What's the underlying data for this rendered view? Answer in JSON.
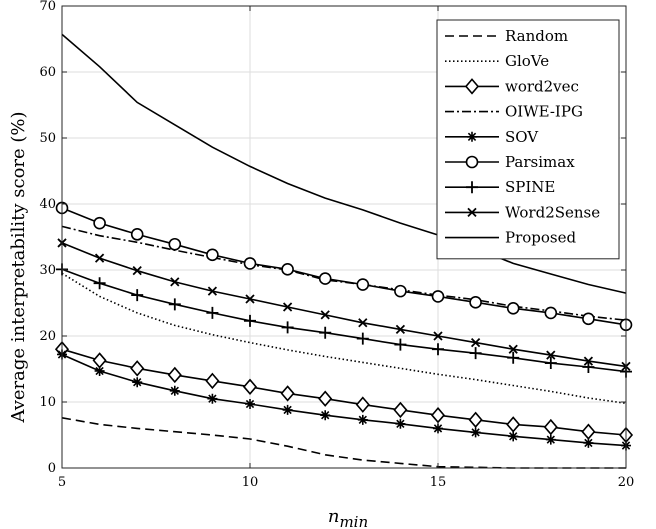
{
  "chart_data": {
    "type": "line",
    "title": "",
    "xlabel": "n",
    "xlabel_sub": "min",
    "ylabel": "Average interpretability score (%)",
    "xlim": [
      5,
      20
    ],
    "ylim": [
      0,
      70
    ],
    "xticks": [
      5,
      10,
      15,
      20
    ],
    "yticks": [
      0,
      10,
      20,
      30,
      40,
      50,
      60,
      70
    ],
    "grid": true,
    "legend": "top-right",
    "x": [
      5,
      6,
      7,
      8,
      9,
      10,
      11,
      12,
      13,
      14,
      15,
      16,
      17,
      18,
      19,
      20
    ],
    "series": [
      {
        "name": "Random",
        "style": "dashed",
        "marker": "none",
        "values": [
          7.6,
          6.6,
          6.0,
          5.5,
          5.0,
          4.4,
          3.3,
          2.0,
          1.2,
          0.7,
          0.2,
          0.1,
          0.0,
          0.0,
          0.0,
          0.0
        ]
      },
      {
        "name": "GloVe",
        "style": "dotted",
        "marker": "none",
        "values": [
          29.5,
          26.0,
          23.5,
          21.6,
          20.2,
          19.0,
          17.9,
          16.9,
          16.0,
          15.1,
          14.2,
          13.4,
          12.5,
          11.6,
          10.6,
          9.8
        ]
      },
      {
        "name": "word2vec",
        "style": "solid",
        "marker": "diamond",
        "values": [
          18.0,
          16.3,
          15.1,
          14.1,
          13.2,
          12.3,
          11.3,
          10.5,
          9.6,
          8.8,
          8.0,
          7.3,
          6.6,
          6.2,
          5.5,
          5.0
        ]
      },
      {
        "name": "OIWE-IPG",
        "style": "dashdot",
        "marker": "none",
        "values": [
          36.6,
          35.2,
          34.2,
          33.0,
          31.9,
          30.8,
          30.0,
          28.5,
          27.8,
          27.0,
          26.2,
          25.5,
          24.5,
          23.8,
          23.0,
          22.4
        ]
      },
      {
        "name": "SOV",
        "style": "solid",
        "marker": "asterisk",
        "values": [
          17.2,
          14.7,
          13.0,
          11.7,
          10.5,
          9.7,
          8.8,
          8.0,
          7.3,
          6.7,
          6.0,
          5.4,
          4.8,
          4.3,
          3.8,
          3.4
        ]
      },
      {
        "name": "Parsimax",
        "style": "solid",
        "marker": "circle",
        "values": [
          39.4,
          37.1,
          35.4,
          33.9,
          32.3,
          31.0,
          30.1,
          28.7,
          27.8,
          26.8,
          26.0,
          25.1,
          24.2,
          23.5,
          22.6,
          21.7
        ]
      },
      {
        "name": "SPINE",
        "style": "solid",
        "marker": "plus",
        "values": [
          30.1,
          28.0,
          26.2,
          24.8,
          23.5,
          22.3,
          21.3,
          20.5,
          19.6,
          18.7,
          18.0,
          17.4,
          16.7,
          15.9,
          15.3,
          14.6
        ]
      },
      {
        "name": "Word2Sense",
        "style": "solid",
        "marker": "x",
        "values": [
          34.1,
          31.8,
          29.9,
          28.2,
          26.8,
          25.6,
          24.4,
          23.2,
          22.0,
          21.0,
          20.0,
          19.0,
          18.0,
          17.1,
          16.2,
          15.4
        ]
      },
      {
        "name": "Proposed",
        "style": "solid",
        "marker": "none",
        "values": [
          65.7,
          60.8,
          55.4,
          52.0,
          48.6,
          45.7,
          43.1,
          40.9,
          39.1,
          37.1,
          35.3,
          33.3,
          31.0,
          29.4,
          27.8,
          26.5
        ]
      }
    ]
  }
}
